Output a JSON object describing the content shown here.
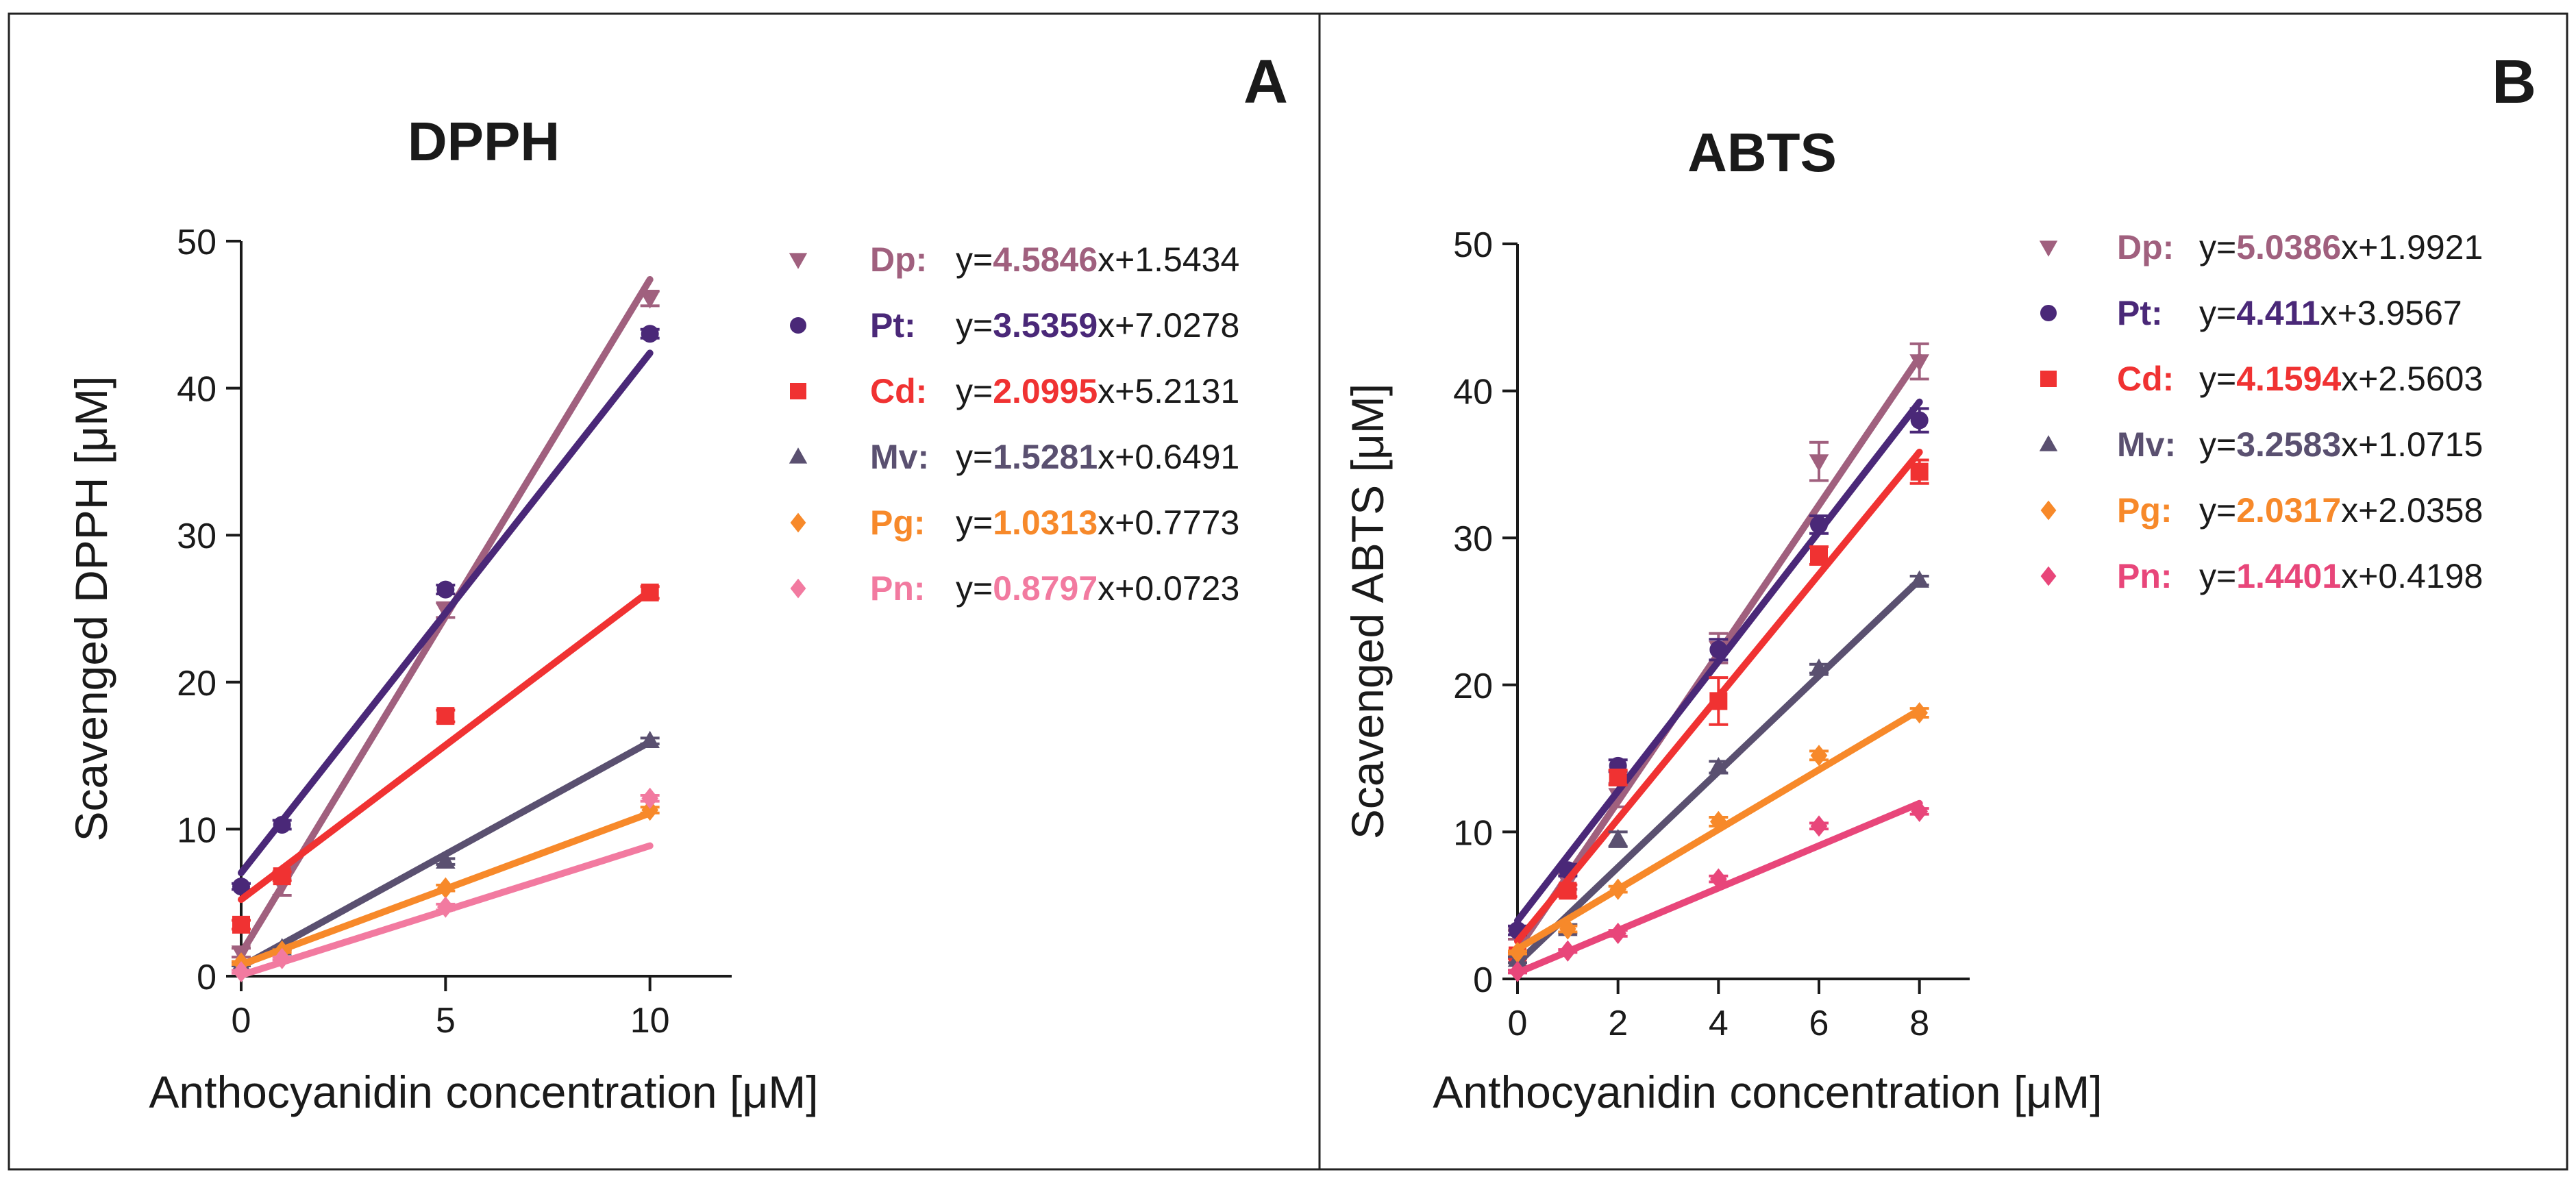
{
  "chart_data": [
    {
      "panel": "A",
      "type": "scatter",
      "title": "DPPH",
      "xlabel": "Anthocyanidin concentration [μM]",
      "ylabel": "Scavenged DPPH [μM]",
      "xlim": [
        0,
        12
      ],
      "ylim": [
        0,
        50
      ],
      "xticks": [
        0,
        5,
        10
      ],
      "yticks": [
        0,
        10,
        20,
        30,
        40,
        50
      ],
      "grid": false,
      "legend": "right",
      "series": [
        {
          "name": "Dp:",
          "marker": "triangle-down",
          "color": "#a0607e",
          "slope_text": "4.5846",
          "intercept_text": "x+1.5434",
          "slope": 4.5846,
          "intercept": 1.5434,
          "x": [
            0,
            1,
            5,
            10
          ],
          "y": [
            1.6,
            6.2,
            24.9,
            46.1
          ],
          "err": [
            0.3,
            0.7,
            0.5,
            0.5
          ]
        },
        {
          "name": "Pt:",
          "marker": "circle",
          "color": "#4a2878",
          "slope_text": "3.5359",
          "intercept_text": "x+7.0278",
          "slope": 3.5359,
          "intercept": 7.0278,
          "x": [
            0,
            1,
            5,
            10
          ],
          "y": [
            6.1,
            10.3,
            26.3,
            43.7
          ],
          "err": [
            0.2,
            0.3,
            0.3,
            0.3
          ]
        },
        {
          "name": "Cd:",
          "marker": "square",
          "color": "#f03232",
          "slope_text": "2.0995",
          "intercept_text": "x+5.2131",
          "slope": 2.0995,
          "intercept": 5.2131,
          "x": [
            0,
            1,
            5,
            10
          ],
          "y": [
            3.5,
            6.8,
            17.7,
            26.1
          ],
          "err": [
            0.3,
            0.3,
            0.4,
            0.4
          ]
        },
        {
          "name": "Mv:",
          "marker": "triangle-up",
          "color": "#5a5070",
          "slope_text": "1.5281",
          "intercept_text": "x+0.6491",
          "slope": 1.5281,
          "intercept": 0.6491,
          "x": [
            0,
            1,
            5,
            10
          ],
          "y": [
            0.8,
            1.9,
            7.8,
            16.0
          ],
          "err": [
            0.1,
            0.1,
            0.2,
            0.2
          ]
        },
        {
          "name": "Pg:",
          "marker": "diamond",
          "color": "#f7892a",
          "slope_text": "1.0313",
          "intercept_text": "x+0.7773",
          "slope": 1.0313,
          "intercept": 0.7773,
          "x": [
            0,
            1,
            5,
            10
          ],
          "y": [
            0.9,
            1.7,
            6.0,
            11.3
          ],
          "err": [
            0.1,
            0.1,
            0.2,
            0.2
          ]
        },
        {
          "name": "Pn:",
          "marker": "diamond",
          "color": "#f27aa0",
          "slope_text": "0.8797",
          "intercept_text": "x+0.0723",
          "slope": 0.8797,
          "intercept": 0.0723,
          "x": [
            0,
            1,
            5,
            10
          ],
          "y": [
            0.3,
            1.2,
            4.7,
            12.1
          ],
          "err": [
            0.1,
            0.1,
            0.2,
            0.2
          ]
        }
      ]
    },
    {
      "panel": "B",
      "type": "scatter",
      "title": "ABTS",
      "xlabel": "Anthocyanidin concentration [μM]",
      "ylabel": "Scavenged ABTS [μM]",
      "xlim": [
        0,
        9
      ],
      "ylim": [
        0,
        50
      ],
      "xticks": [
        0,
        2,
        4,
        6,
        8
      ],
      "yticks": [
        0,
        10,
        20,
        30,
        40,
        50
      ],
      "grid": false,
      "legend": "right",
      "series": [
        {
          "name": "Dp:",
          "marker": "triangle-down",
          "color": "#a0607e",
          "slope_text": "5.0386",
          "intercept_text": "x+1.9921",
          "slope": 5.0386,
          "intercept": 1.9921,
          "x": [
            0,
            1,
            2,
            4,
            6,
            8
          ],
          "y": [
            3.0,
            6.6,
            12.5,
            22.5,
            35.2,
            42.0
          ],
          "err": [
            0.3,
            0.5,
            0.8,
            1.0,
            1.3,
            1.2
          ]
        },
        {
          "name": "Pt:",
          "marker": "circle",
          "color": "#4a2878",
          "slope_text": "4.411",
          "intercept_text": "x+3.9567",
          "slope": 4.411,
          "intercept": 3.9567,
          "x": [
            0,
            1,
            2,
            4,
            6,
            8
          ],
          "y": [
            3.3,
            7.4,
            14.5,
            22.4,
            30.9,
            38.0
          ],
          "err": [
            0.3,
            0.4,
            0.4,
            0.7,
            0.6,
            0.8
          ]
        },
        {
          "name": "Cd:",
          "marker": "square",
          "color": "#f03232",
          "slope_text": "4.1594",
          "intercept_text": "x+2.5603",
          "slope": 4.1594,
          "intercept": 2.5603,
          "x": [
            0,
            1,
            2,
            4,
            6,
            8
          ],
          "y": [
            1.6,
            6.0,
            13.7,
            18.9,
            28.8,
            34.5
          ],
          "err": [
            0.2,
            0.4,
            0.5,
            1.6,
            0.6,
            0.8
          ]
        },
        {
          "name": "Mv:",
          "marker": "triangle-up",
          "color": "#5a5070",
          "slope_text": "3.2583",
          "intercept_text": "x+1.0715",
          "slope": 3.2583,
          "intercept": 1.0715,
          "x": [
            0,
            1,
            2,
            4,
            6,
            8
          ],
          "y": [
            1.3,
            3.4,
            9.5,
            14.4,
            21.1,
            27.1
          ],
          "err": [
            0.2,
            0.3,
            0.5,
            0.4,
            0.3,
            0.3
          ]
        },
        {
          "name": "Pg:",
          "marker": "diamond",
          "color": "#f7892a",
          "slope_text": "2.0317",
          "intercept_text": "x+2.0358",
          "slope": 2.0317,
          "intercept": 2.0358,
          "x": [
            0,
            1,
            2,
            4,
            6,
            8
          ],
          "y": [
            1.8,
            3.4,
            6.1,
            10.7,
            15.2,
            18.1
          ],
          "err": [
            0.1,
            0.2,
            0.2,
            0.3,
            0.3,
            0.3
          ]
        },
        {
          "name": "Pn:",
          "marker": "diamond",
          "color": "#e8467a",
          "slope_text": "1.4401",
          "intercept_text": "x+0.4198",
          "slope": 1.4401,
          "intercept": 0.4198,
          "x": [
            0,
            1,
            2,
            4,
            6,
            8
          ],
          "y": [
            0.5,
            1.9,
            3.1,
            6.8,
            10.4,
            11.4
          ],
          "err": [
            0.1,
            0.1,
            0.2,
            0.2,
            0.2,
            0.2
          ]
        }
      ]
    }
  ]
}
